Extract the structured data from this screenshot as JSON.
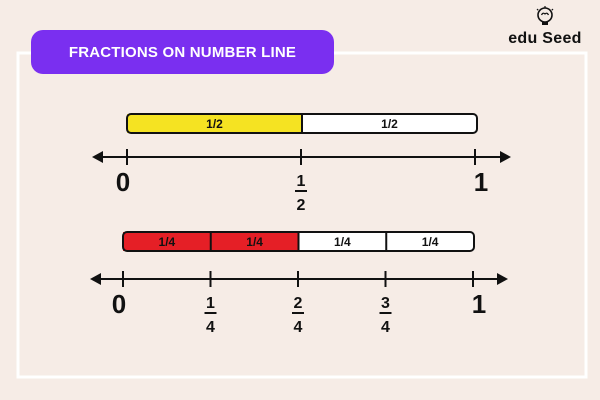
{
  "header": {
    "title": "FRACTIONS ON NUMBER LINE"
  },
  "logo": {
    "text": "edu Seed",
    "icon": "lightbulb-brain-icon"
  },
  "colors": {
    "background": "#f6ece6",
    "frame": "#ffffff",
    "badge": "#7a2ff0",
    "halves_fill": "#f5e322",
    "quarters_fill": "#e51f26",
    "empty_fill": "#ffffff",
    "stroke": "#111111"
  },
  "halves": {
    "segments": [
      {
        "label": "1/2",
        "shaded": true
      },
      {
        "label": "1/2",
        "shaded": false
      }
    ],
    "ticks": [
      {
        "value": 0,
        "whole": "0"
      },
      {
        "value": 0.5,
        "numerator": "1",
        "denominator": "2"
      },
      {
        "value": 1,
        "whole": "1"
      }
    ]
  },
  "quarters": {
    "segments": [
      {
        "label": "1/4",
        "shaded": true
      },
      {
        "label": "1/4",
        "shaded": true
      },
      {
        "label": "1/4",
        "shaded": false
      },
      {
        "label": "1/4",
        "shaded": false
      }
    ],
    "ticks": [
      {
        "value": 0,
        "whole": "0"
      },
      {
        "value": 0.25,
        "numerator": "1",
        "denominator": "4"
      },
      {
        "value": 0.5,
        "numerator": "2",
        "denominator": "4"
      },
      {
        "value": 0.75,
        "numerator": "3",
        "denominator": "4"
      },
      {
        "value": 1,
        "whole": "1"
      }
    ]
  }
}
